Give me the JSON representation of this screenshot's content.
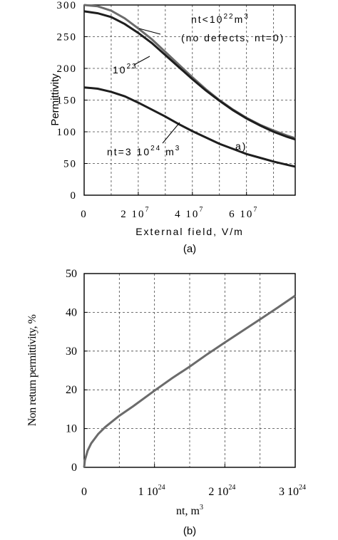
{
  "chart_data": [
    {
      "panel": "(a)",
      "type": "line",
      "xlabel": "External field, V/m",
      "ylabel": "Permittivity",
      "xlim": [
        0,
        78000000
      ],
      "ylim": [
        0,
        300
      ],
      "x_ticks": [
        {
          "value": 20000000,
          "label": "2 10",
          "exp": "7"
        },
        {
          "value": 40000000,
          "label": "4 10",
          "exp": "7"
        },
        {
          "value": 60000000,
          "label": "6 10",
          "exp": "7"
        }
      ],
      "x_zero_label": "0",
      "y_ticks": [
        0,
        50,
        100,
        150,
        200,
        250,
        300
      ],
      "grid": true,
      "series": [
        {
          "color": "#6b6b6b",
          "x": [
            0,
            5000000,
            10000000,
            15000000,
            20000000,
            25000000,
            30000000,
            35000000,
            40000000,
            45000000,
            50000000,
            55000000,
            60000000,
            65000000,
            70000000,
            75000000,
            78000000
          ],
          "y": [
            300,
            298,
            291,
            279,
            263,
            246,
            226,
            206,
            186,
            167,
            150,
            135,
            122,
            111,
            102,
            94,
            90
          ]
        },
        {
          "color": "#1e1e1e",
          "x": [
            0,
            5000000,
            10000000,
            15000000,
            20000000,
            25000000,
            30000000,
            35000000,
            40000000,
            45000000,
            50000000,
            55000000,
            60000000,
            65000000,
            70000000,
            75000000,
            78000000
          ],
          "y": [
            290,
            287,
            281,
            270,
            256,
            240,
            221,
            202,
            183,
            165,
            149,
            134,
            121,
            110,
            100,
            92,
            88
          ]
        },
        {
          "color": "#1e1e1e",
          "x": [
            0,
            5000000,
            10000000,
            15000000,
            20000000,
            25000000,
            30000000,
            35000000,
            40000000,
            45000000,
            50000000,
            55000000,
            60000000,
            65000000,
            70000000,
            75000000,
            78000000
          ],
          "y": [
            170,
            168,
            163,
            156,
            146,
            135,
            124,
            112,
            101,
            91,
            81,
            73,
            65,
            59,
            53,
            48,
            45
          ]
        }
      ],
      "annotations": [
        {
          "id": "nt-low",
          "text": "nt<10",
          "exp": "22",
          "tail": "m",
          "tail_exp": "3"
        },
        {
          "id": "no-defects",
          "text": "(no defects, nt=0)"
        },
        {
          "id": "nt-23",
          "text": "10",
          "exp": "23"
        },
        {
          "id": "nt-high",
          "text": "nt=3 10",
          "exp": "24",
          "tail": " m",
          "tail_exp": "3"
        },
        {
          "id": "a-mark",
          "text": "a)"
        }
      ],
      "caption": "(a)"
    },
    {
      "panel": "(b)",
      "type": "line",
      "xlabel": "nt, m",
      "xlabel_exp": "3",
      "ylabel": "Non return permittivity, %",
      "xlim": [
        0,
        3e+24
      ],
      "ylim": [
        0,
        50
      ],
      "x_ticks": [
        {
          "value": 1e+24,
          "label": "1 10",
          "exp": "24"
        },
        {
          "value": 2e+24,
          "label": "2 10",
          "exp": "24"
        },
        {
          "value": 3e+24,
          "label": "3 10",
          "exp": "24"
        }
      ],
      "x_zero_label": "0",
      "y_ticks": [
        0,
        10,
        20,
        30,
        40,
        50
      ],
      "grid": true,
      "series": [
        {
          "color": "#6b6b6b",
          "x": [
            0,
            1e+22,
            5e+22,
            1e+23,
            2e+23,
            3e+23,
            5e+23,
            7e+23,
            1e+24,
            1.25e+24,
            1.5e+24,
            1.75e+24,
            2e+24,
            2.25e+24,
            2.5e+24,
            2.75e+24,
            3e+24
          ],
          "y": [
            0,
            1.8,
            4.3,
            6.2,
            8.6,
            10.4,
            13.3,
            15.8,
            19.8,
            23,
            26,
            29.2,
            32.2,
            35.2,
            38.2,
            41.2,
            44.3
          ]
        }
      ],
      "caption": "(b)"
    }
  ]
}
